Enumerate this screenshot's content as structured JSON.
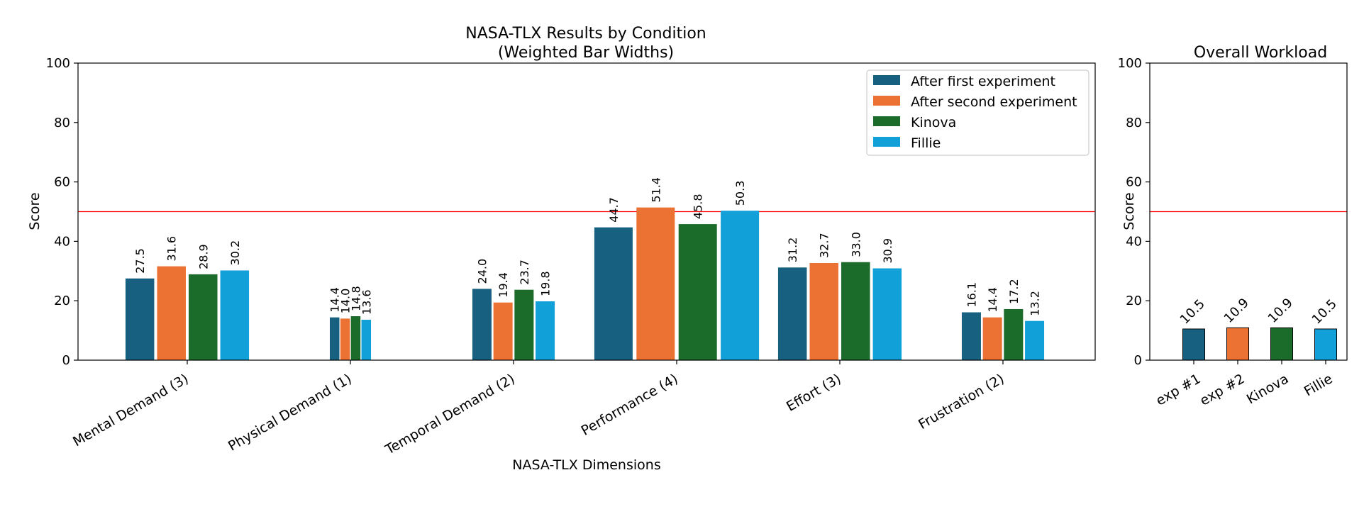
{
  "colors": {
    "series": [
      "#17607f",
      "#ec7234",
      "#1b6b2a",
      "#12a0d8"
    ],
    "reference_line": "#ff0000",
    "axes": "#000000",
    "legend_border": "#cccccc"
  },
  "chart_data": [
    {
      "id": "main",
      "type": "bar",
      "title_line1": "NASA-TLX Results by Condition",
      "title_line2": "(Weighted Bar Widths)",
      "xlabel": "NASA-TLX Dimensions",
      "ylabel": "Score",
      "ylim": [
        0,
        100
      ],
      "yticks": [
        "0",
        "20",
        "40",
        "60",
        "80",
        "100"
      ],
      "reference_line": 50,
      "legend_position": "top-right",
      "categories": [
        "Mental Demand (3)",
        "Physical Demand (1)",
        "Temporal Demand (2)",
        "Performance (4)",
        "Effort (3)",
        "Frustration (2)"
      ],
      "weights": [
        3,
        1,
        2,
        4,
        3,
        2
      ],
      "series": [
        {
          "name": "After first experiment",
          "values": [
            27.5,
            14.4,
            24.0,
            44.7,
            31.2,
            16.1
          ],
          "labels": [
            "27.5",
            "14.4",
            "24.0",
            "44.7",
            "31.2",
            "16.1"
          ]
        },
        {
          "name": "After second experiment",
          "values": [
            31.6,
            14.0,
            19.4,
            51.4,
            32.7,
            14.4
          ],
          "labels": [
            "31.6",
            "14.0",
            "19.4",
            "51.4",
            "32.7",
            "14.4"
          ]
        },
        {
          "name": "Kinova",
          "values": [
            28.9,
            14.8,
            23.7,
            45.8,
            33.0,
            17.2
          ],
          "labels": [
            "28.9",
            "14.8",
            "23.7",
            "45.8",
            "33.0",
            "17.2"
          ]
        },
        {
          "name": "Fillie",
          "values": [
            30.2,
            13.6,
            19.8,
            50.3,
            30.9,
            13.2
          ],
          "labels": [
            "30.2",
            "13.6",
            "19.8",
            "50.3",
            "30.9",
            "13.2"
          ]
        }
      ]
    },
    {
      "id": "overall",
      "type": "bar",
      "title": "Overall Workload",
      "ylabel": "Score",
      "ylim": [
        0,
        100
      ],
      "yticks": [
        "0",
        "20",
        "40",
        "60",
        "80",
        "100"
      ],
      "reference_line": 50,
      "categories": [
        "exp #1",
        "exp #2",
        "Kinova",
        "Fillie"
      ],
      "values": [
        10.5,
        10.9,
        10.9,
        10.5
      ],
      "labels": [
        "10.5",
        "10.9",
        "10.9",
        "10.5"
      ]
    }
  ]
}
